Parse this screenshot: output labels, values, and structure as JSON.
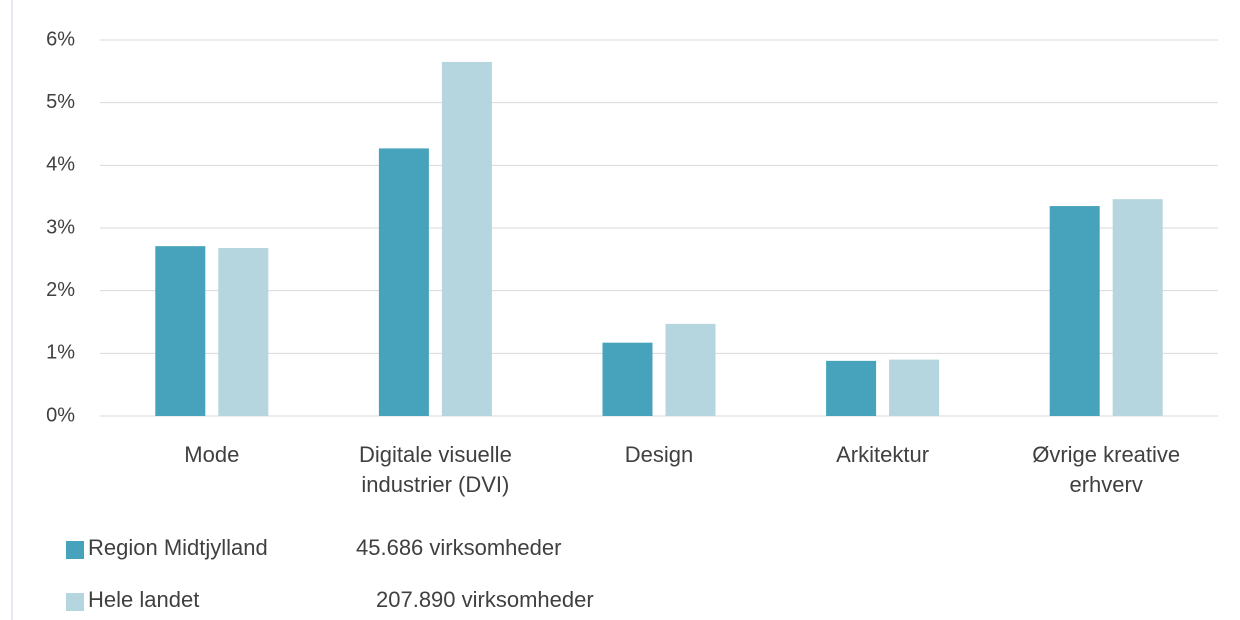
{
  "chart_data": {
    "type": "bar",
    "categories": [
      "Mode",
      "Digitale visuelle\nindustrier (DVI)",
      "Design",
      "Arkitektur",
      "Øvrige kreative\nerhverv"
    ],
    "series": [
      {
        "name": "Region Midtjylland",
        "color": "#46a3bb",
        "values": [
          2.71,
          4.27,
          1.17,
          0.88,
          3.35
        ]
      },
      {
        "name": "Hele landet",
        "color": "#b5d5df",
        "values": [
          2.68,
          5.65,
          1.47,
          0.9,
          3.46
        ]
      }
    ],
    "legend_notes": [
      "45.686 virksomheder",
      "207.890 virksomheder"
    ],
    "ylim": [
      0,
      6
    ],
    "yticks": [
      {
        "value": 0,
        "label": "0%"
      },
      {
        "value": 1,
        "label": "1%"
      },
      {
        "value": 2,
        "label": "2%"
      },
      {
        "value": 3,
        "label": "3%"
      },
      {
        "value": 4,
        "label": "4%"
      },
      {
        "value": 5,
        "label": "5%"
      },
      {
        "value": 6,
        "label": "6%"
      }
    ],
    "grid": true
  }
}
